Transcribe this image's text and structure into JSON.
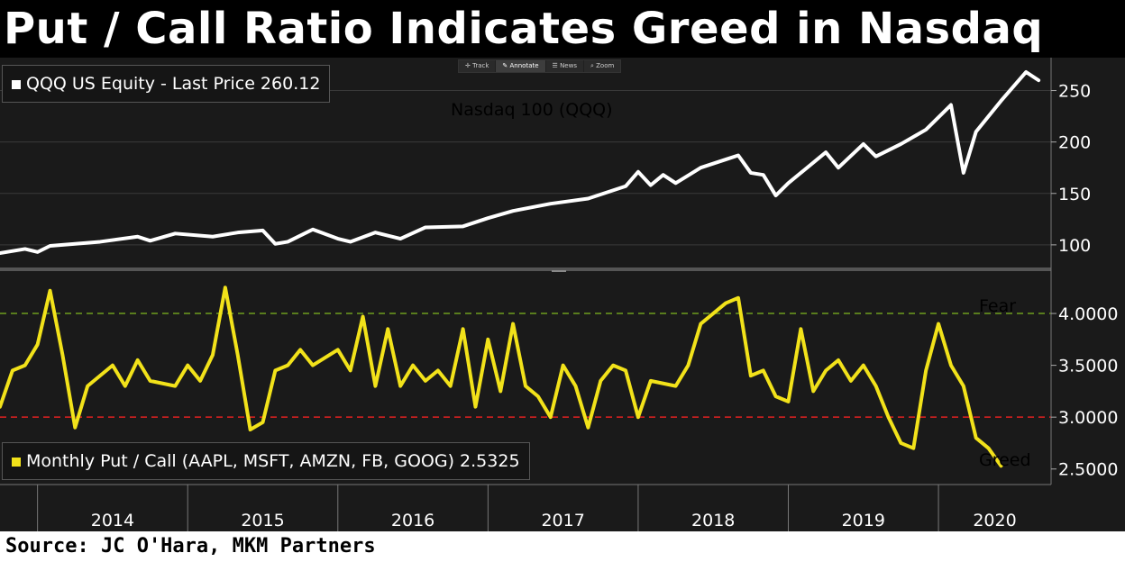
{
  "title": "Put / Call Ratio Indicates Greed in Nasdaq",
  "source": "Source: JC O'Hara, MKM Partners",
  "toolbar": [
    {
      "label": "Track",
      "icon": "crosshair-icon"
    },
    {
      "label": "Annotate",
      "icon": "pencil-icon"
    },
    {
      "label": "News",
      "icon": "news-icon"
    },
    {
      "label": "Zoom",
      "icon": "magnifier-icon"
    }
  ],
  "colors": {
    "price": "#ffffff",
    "ratio": "#f2e21a",
    "fear_line": "#6e9e1e",
    "greed_line": "#e02020",
    "background": "#1a1a1a"
  },
  "chart_data": [
    {
      "type": "line",
      "legend": "QQQ US Equity - Last Price 260.12",
      "annotation": "Nasdaq 100 (QQQ)",
      "ylim": [
        78,
        282
      ],
      "yticks": [
        100,
        150,
        200,
        250
      ],
      "series": [
        {
          "name": "QQQ US Equity - Last Price",
          "points": [
            [
              "2013-10",
              92
            ],
            [
              "2013-12",
              96
            ],
            [
              "2014-01",
              93
            ],
            [
              "2014-02",
              99
            ],
            [
              "2014-04",
              101
            ],
            [
              "2014-06",
              103
            ],
            [
              "2014-09",
              108
            ],
            [
              "2014-10",
              104
            ],
            [
              "2014-12",
              111
            ],
            [
              "2015-03",
              108
            ],
            [
              "2015-05",
              112
            ],
            [
              "2015-07",
              114
            ],
            [
              "2015-08",
              101
            ],
            [
              "2015-09",
              103
            ],
            [
              "2015-11",
              115
            ],
            [
              "2016-01",
              106
            ],
            [
              "2016-02",
              103
            ],
            [
              "2016-04",
              112
            ],
            [
              "2016-06",
              106
            ],
            [
              "2016-08",
              117
            ],
            [
              "2016-11",
              118
            ],
            [
              "2017-01",
              126
            ],
            [
              "2017-03",
              133
            ],
            [
              "2017-06",
              140
            ],
            [
              "2017-09",
              145
            ],
            [
              "2017-12",
              157
            ],
            [
              "2018-01",
              171
            ],
            [
              "2018-02",
              158
            ],
            [
              "2018-03",
              168
            ],
            [
              "2018-04",
              160
            ],
            [
              "2018-06",
              175
            ],
            [
              "2018-08",
              183
            ],
            [
              "2018-09",
              187
            ],
            [
              "2018-10",
              170
            ],
            [
              "2018-11",
              168
            ],
            [
              "2018-12",
              148
            ],
            [
              "2019-01",
              160
            ],
            [
              "2019-04",
              190
            ],
            [
              "2019-05",
              175
            ],
            [
              "2019-07",
              198
            ],
            [
              "2019-08",
              186
            ],
            [
              "2019-10",
              198
            ],
            [
              "2019-12",
              212
            ],
            [
              "2020-02",
              236
            ],
            [
              "2020-03",
              170
            ],
            [
              "2020-04",
              210
            ],
            [
              "2020-06",
              240
            ],
            [
              "2020-08",
              268
            ],
            [
              "2020-09",
              260
            ]
          ]
        }
      ]
    },
    {
      "type": "line",
      "legend": "Monthly Put / Call (AAPL, MSFT, AMZN, FB, GOOG) 2.5325",
      "annotations": [
        "Fear",
        "Greed"
      ],
      "ylim": [
        2.35,
        4.4
      ],
      "yticks": [
        "4.0000",
        "3.5000",
        "3.0000",
        "2.5000"
      ],
      "fear_level": 4.0,
      "greed_level": 3.0,
      "series": [
        {
          "name": "Monthly Put / Call (AAPL, MSFT, AMZN, FB, GOOG)",
          "points": [
            [
              "2013-10",
              3.1
            ],
            [
              "2013-11",
              3.45
            ],
            [
              "2013-12",
              3.5
            ],
            [
              "2014-01",
              3.7
            ],
            [
              "2014-02",
              4.22
            ],
            [
              "2014-03",
              3.6
            ],
            [
              "2014-04",
              2.9
            ],
            [
              "2014-05",
              3.3
            ],
            [
              "2014-07",
              3.5
            ],
            [
              "2014-08",
              3.3
            ],
            [
              "2014-09",
              3.55
            ],
            [
              "2014-10",
              3.35
            ],
            [
              "2014-12",
              3.3
            ],
            [
              "2015-01",
              3.5
            ],
            [
              "2015-02",
              3.35
            ],
            [
              "2015-03",
              3.6
            ],
            [
              "2015-04",
              4.25
            ],
            [
              "2015-05",
              3.6
            ],
            [
              "2015-06",
              2.88
            ],
            [
              "2015-07",
              2.95
            ],
            [
              "2015-08",
              3.45
            ],
            [
              "2015-09",
              3.5
            ],
            [
              "2015-10",
              3.65
            ],
            [
              "2015-11",
              3.5
            ],
            [
              "2016-01",
              3.65
            ],
            [
              "2016-02",
              3.45
            ],
            [
              "2016-03",
              3.97
            ],
            [
              "2016-04",
              3.3
            ],
            [
              "2016-05",
              3.85
            ],
            [
              "2016-06",
              3.3
            ],
            [
              "2016-07",
              3.5
            ],
            [
              "2016-08",
              3.35
            ],
            [
              "2016-09",
              3.45
            ],
            [
              "2016-10",
              3.3
            ],
            [
              "2016-11",
              3.85
            ],
            [
              "2016-12",
              3.1
            ],
            [
              "2017-01",
              3.75
            ],
            [
              "2017-02",
              3.25
            ],
            [
              "2017-03",
              3.9
            ],
            [
              "2017-04",
              3.3
            ],
            [
              "2017-05",
              3.2
            ],
            [
              "2017-06",
              3.0
            ],
            [
              "2017-07",
              3.5
            ],
            [
              "2017-08",
              3.3
            ],
            [
              "2017-09",
              2.9
            ],
            [
              "2017-10",
              3.35
            ],
            [
              "2017-11",
              3.5
            ],
            [
              "2017-12",
              3.45
            ],
            [
              "2018-01",
              3.0
            ],
            [
              "2018-02",
              3.35
            ],
            [
              "2018-04",
              3.3
            ],
            [
              "2018-05",
              3.5
            ],
            [
              "2018-06",
              3.9
            ],
            [
              "2018-08",
              4.1
            ],
            [
              "2018-09",
              4.15
            ],
            [
              "2018-10",
              3.4
            ],
            [
              "2018-11",
              3.45
            ],
            [
              "2018-12",
              3.2
            ],
            [
              "2019-01",
              3.15
            ],
            [
              "2019-02",
              3.85
            ],
            [
              "2019-03",
              3.25
            ],
            [
              "2019-04",
              3.45
            ],
            [
              "2019-05",
              3.55
            ],
            [
              "2019-06",
              3.35
            ],
            [
              "2019-07",
              3.5
            ],
            [
              "2019-08",
              3.3
            ],
            [
              "2019-09",
              3.0
            ],
            [
              "2019-10",
              2.75
            ],
            [
              "2019-11",
              2.7
            ],
            [
              "2019-12",
              3.45
            ],
            [
              "2020-01",
              3.9
            ],
            [
              "2020-02",
              3.5
            ],
            [
              "2020-03",
              3.3
            ],
            [
              "2020-04",
              2.8
            ],
            [
              "2020-05",
              2.7
            ],
            [
              "2020-06",
              2.53
            ]
          ]
        }
      ]
    }
  ],
  "x_axis": {
    "labels": [
      "2014",
      "2015",
      "2016",
      "2017",
      "2018",
      "2019",
      "2020"
    ]
  }
}
